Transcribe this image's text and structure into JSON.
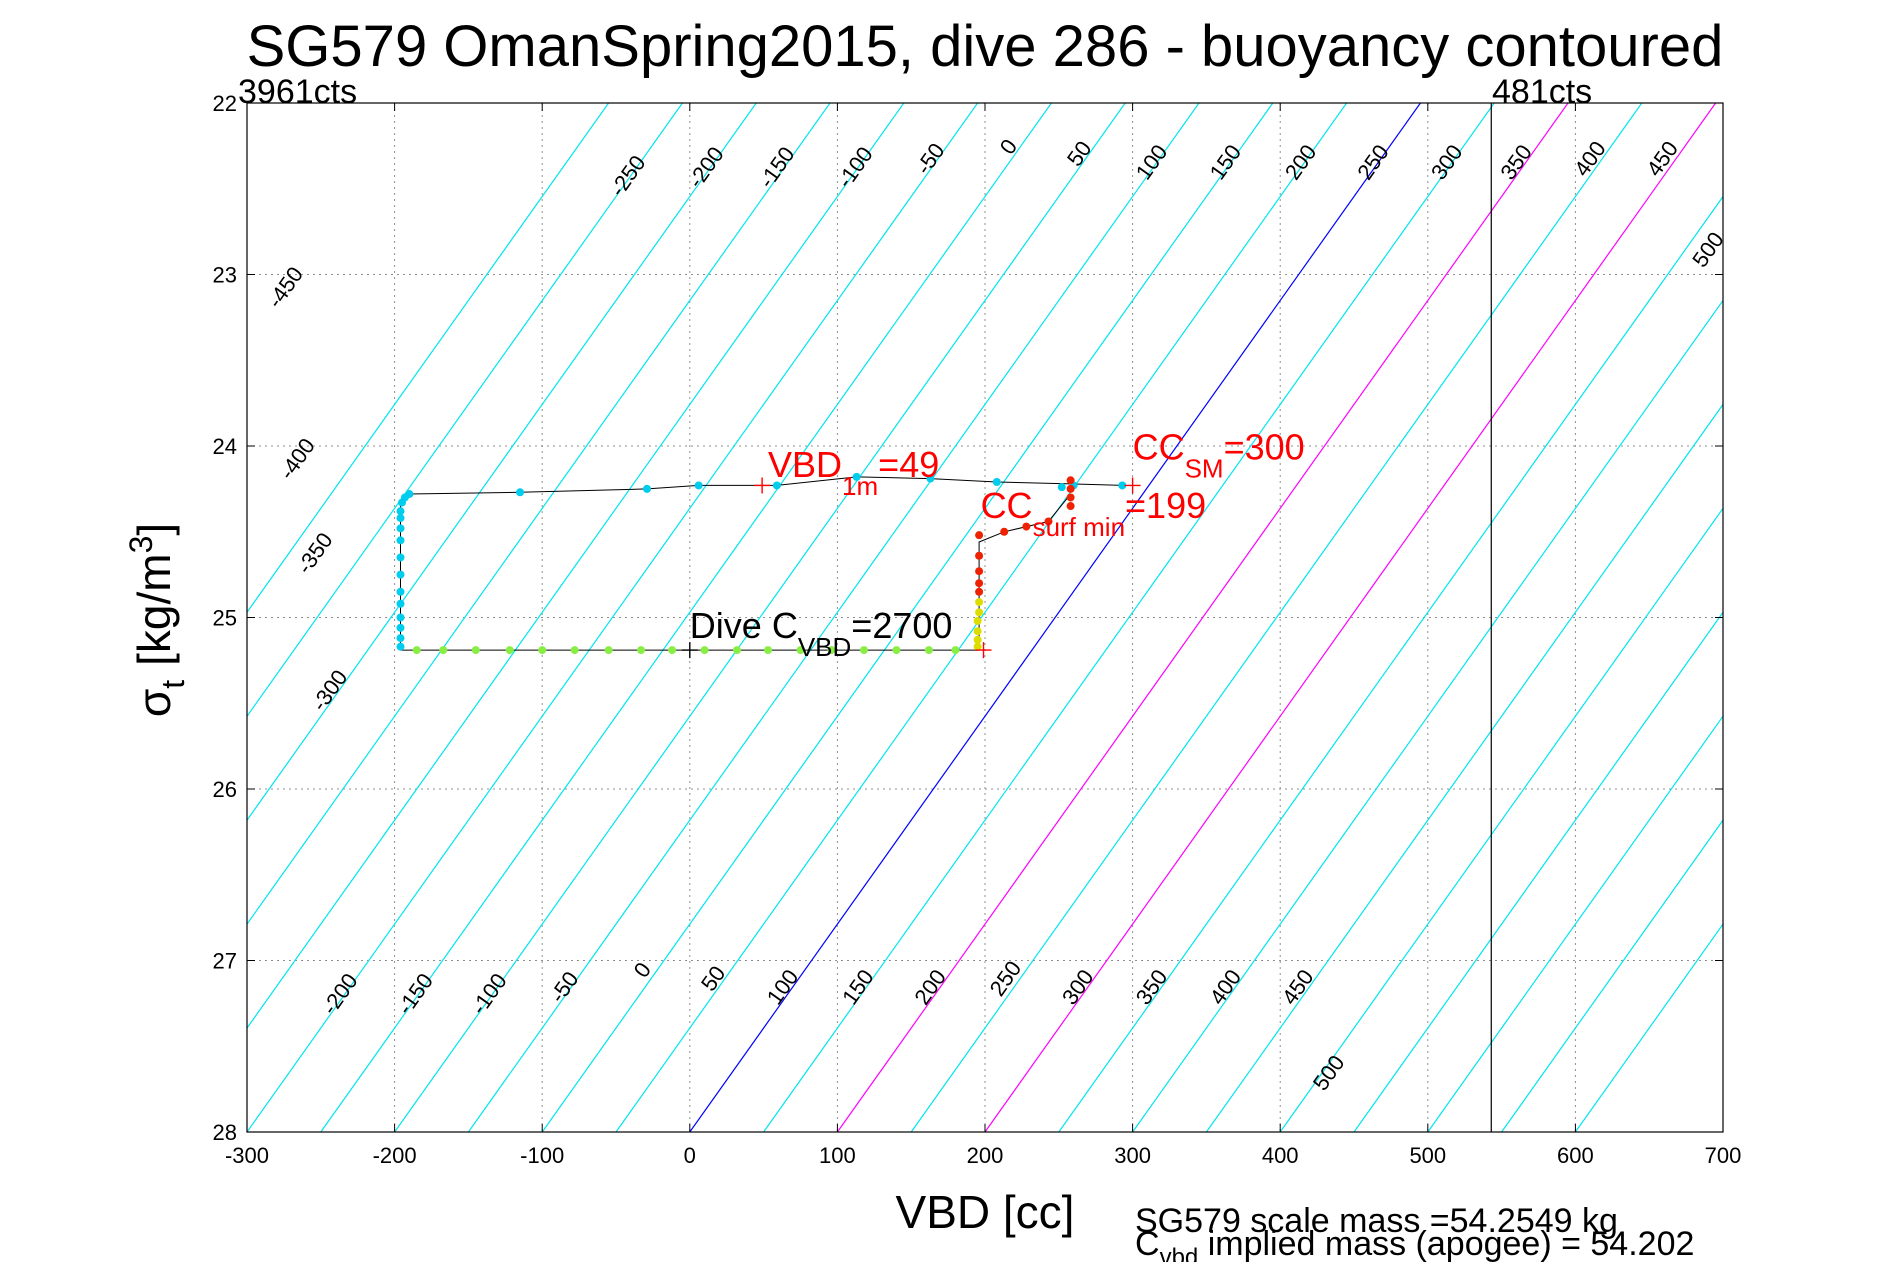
{
  "chart_data": {
    "type": "scatter",
    "title": "SG579 OmanSpring2015, dive 286 - buoyancy contoured",
    "xlabel": "VBD [cc]",
    "ylabel_main": "σ",
    "ylabel_sub": "t",
    "ylabel_unit": "[kg/m",
    "ylabel_unit_sup": "3",
    "ylabel_unit_close": "]",
    "xlim": [
      -300,
      700
    ],
    "ylim": [
      22,
      28
    ],
    "y_reversed": true,
    "grid": true,
    "x_ticks": [
      -300,
      -200,
      -100,
      0,
      100,
      200,
      300,
      400,
      500,
      600,
      700
    ],
    "x_tick_labels": [
      "-300",
      "-200",
      "-100",
      "0",
      "100",
      "200",
      "300",
      "400",
      "500",
      "600",
      "700"
    ],
    "y_ticks": [
      22,
      23,
      24,
      25,
      26,
      27,
      28
    ],
    "y_tick_labels": [
      "22",
      "23",
      "24",
      "25",
      "26",
      "27",
      "28"
    ],
    "corner_labels": {
      "left": "3961cts",
      "right": "481cts"
    },
    "vbd_limit_line_x": 543,
    "contours": {
      "offsets": [
        -450,
        -400,
        -350,
        -300,
        -250,
        -200,
        -150,
        -100,
        -50,
        0,
        50,
        100,
        150,
        200,
        250,
        300,
        350,
        400,
        450,
        500
      ],
      "values": [
        -550,
        -500,
        -450,
        -400,
        -350,
        -300,
        -250,
        -200,
        -150,
        -100,
        -50,
        0,
        50,
        100,
        150,
        200,
        250,
        300,
        350,
        400,
        450,
        500,
        550,
        600
      ],
      "top_labels": [
        {
          "text": "-450",
          "x": -270,
          "y": 23.1
        },
        {
          "text": "-400",
          "x": -262,
          "y": 24.1
        },
        {
          "text": "-350",
          "x": -250,
          "y": 24.65
        },
        {
          "text": "-300",
          "x": -240,
          "y": 25.45
        },
        {
          "text": "-250",
          "x": -38,
          "y": 22.45
        },
        {
          "text": "-200",
          "x": 15,
          "y": 22.4
        },
        {
          "text": "-150",
          "x": 63,
          "y": 22.4
        },
        {
          "text": "-100",
          "x": 116,
          "y": 22.4
        },
        {
          "text": "-50",
          "x": 167,
          "y": 22.35
        },
        {
          "text": "0",
          "x": 220,
          "y": 22.28
        },
        {
          "text": "50",
          "x": 268,
          "y": 22.32
        },
        {
          "text": "100",
          "x": 317,
          "y": 22.37
        },
        {
          "text": "150",
          "x": 367,
          "y": 22.37
        },
        {
          "text": "200",
          "x": 418,
          "y": 22.37
        },
        {
          "text": "250",
          "x": 467,
          "y": 22.37
        },
        {
          "text": "300",
          "x": 517,
          "y": 22.37
        },
        {
          "text": "350",
          "x": 564,
          "y": 22.37
        },
        {
          "text": "400",
          "x": 614,
          "y": 22.35
        },
        {
          "text": "450",
          "x": 663,
          "y": 22.35
        },
        {
          "text": "500",
          "x": 694,
          "y": 22.88
        }
      ],
      "bottom_labels": [
        {
          "text": "-200",
          "x": -233,
          "y": 27.22
        },
        {
          "text": "-150",
          "x": -182,
          "y": 27.22
        },
        {
          "text": "-100",
          "x": -132,
          "y": 27.22
        },
        {
          "text": "-50",
          "x": -81,
          "y": 27.18
        },
        {
          "text": "0",
          "x": -28,
          "y": 27.08
        },
        {
          "text": "50",
          "x": 20,
          "y": 27.13
        },
        {
          "text": "100",
          "x": 67,
          "y": 27.18
        },
        {
          "text": "150",
          "x": 118,
          "y": 27.18
        },
        {
          "text": "200",
          "x": 167,
          "y": 27.18
        },
        {
          "text": "250",
          "x": 218,
          "y": 27.13
        },
        {
          "text": "300",
          "x": 267,
          "y": 27.18
        },
        {
          "text": "350",
          "x": 317,
          "y": 27.18
        },
        {
          "text": "400",
          "x": 367,
          "y": 27.18
        },
        {
          "text": "450",
          "x": 416,
          "y": 27.18
        },
        {
          "text": "500",
          "x": 437,
          "y": 27.68
        }
      ]
    },
    "series": [
      {
        "points": [
          [
            -190,
            24.28
          ],
          [
            -115,
            24.27
          ],
          [
            -29,
            24.25
          ],
          [
            6,
            24.23
          ],
          [
            59,
            24.23
          ],
          [
            113,
            24.18
          ],
          [
            163,
            24.19
          ],
          [
            208,
            24.21
          ],
          [
            252,
            24.24
          ],
          [
            260,
            24.23
          ],
          [
            293,
            24.23
          ],
          [
            -193,
            24.3
          ],
          [
            -195,
            24.33
          ],
          [
            -196,
            24.38
          ],
          [
            -196,
            24.42
          ],
          [
            -196,
            24.48
          ],
          [
            -196,
            24.55
          ],
          [
            -196,
            24.65
          ],
          [
            -196,
            24.75
          ],
          [
            -196,
            24.85
          ],
          [
            -196,
            24.92
          ],
          [
            -196,
            25.0
          ],
          [
            -196,
            25.06
          ],
          [
            -196,
            25.12
          ],
          [
            -196,
            25.17
          ]
        ]
      },
      {
        "points": [
          [
            -185,
            25.19
          ],
          [
            -167,
            25.19
          ],
          [
            -145,
            25.19
          ],
          [
            -122,
            25.19
          ],
          [
            -100,
            25.19
          ],
          [
            -78,
            25.19
          ],
          [
            -55,
            25.19
          ],
          [
            -33,
            25.19
          ],
          [
            -12,
            25.19
          ],
          [
            10,
            25.19
          ],
          [
            32,
            25.19
          ],
          [
            53,
            25.19
          ],
          [
            75,
            25.19
          ],
          [
            96,
            25.19
          ],
          [
            118,
            25.19
          ],
          [
            140,
            25.19
          ],
          [
            162,
            25.19
          ],
          [
            180,
            25.19
          ]
        ]
      },
      {
        "points": [
          [
            195,
            25.17
          ],
          [
            195,
            25.13
          ],
          [
            195,
            25.08
          ],
          [
            195,
            25.02
          ],
          [
            196,
            24.97
          ],
          [
            196,
            24.91
          ]
        ]
      },
      {
        "points": [
          [
            196,
            24.52
          ],
          [
            196,
            24.64
          ],
          [
            196,
            24.73
          ],
          [
            196,
            24.8
          ],
          [
            196,
            24.85
          ],
          [
            213,
            24.5
          ],
          [
            228,
            24.47
          ],
          [
            243,
            24.44
          ],
          [
            258,
            24.3
          ],
          [
            258,
            24.25
          ],
          [
            258,
            24.2
          ],
          [
            258,
            24.35
          ]
        ]
      }
    ],
    "track": [
      [
        293,
        24.23
      ],
      [
        255,
        24.22
      ],
      [
        208,
        24.21
      ],
      [
        163,
        24.19
      ],
      [
        113,
        24.18
      ],
      [
        59,
        24.23
      ],
      [
        6,
        24.23
      ],
      [
        -29,
        24.25
      ],
      [
        -115,
        24.27
      ],
      [
        -190,
        24.28
      ],
      [
        -196,
        24.32
      ],
      [
        -196,
        25.19
      ],
      [
        196,
        25.19
      ],
      [
        196,
        24.56
      ],
      [
        213,
        24.5
      ],
      [
        243,
        24.44
      ],
      [
        258,
        24.28
      ]
    ],
    "annotations": [
      {
        "main": "VBD",
        "sub": "1m",
        "suffix": "=49",
        "x": 53,
        "y": 24.18,
        "color": "#ff0000",
        "marker_x": 49,
        "marker_y": 24.23
      },
      {
        "main": "CC",
        "sub": "SM",
        "suffix": "=300",
        "x": 300,
        "y": 24.08,
        "color": "#ff0000",
        "marker_x": 300,
        "marker_y": 24.23
      },
      {
        "main": "CC",
        "sub": "surf min",
        "suffix": "=199",
        "x": 197,
        "y": 24.42,
        "color": "#ff0000",
        "marker_x": 199,
        "marker_y": 25.19
      },
      {
        "main": "Dive C",
        "sub": "VBD",
        "suffix": "=2700",
        "x": 0,
        "y": 25.12,
        "color": "#000000",
        "marker_x": 0,
        "marker_y": 25.19
      }
    ],
    "footer": {
      "line1": "SG579 scale mass =54.2549 kg",
      "line2_main": "C",
      "line2_sub": "vbd",
      "line2_rest": " implied mass (apogee) = 54.202"
    },
    "colors": {
      "contour": "#00e5ee",
      "zero_contour": "#0000ff",
      "magenta_contour": "#ff00ff",
      "grid": "#909090",
      "track": "#000000",
      "cyan_points": "#00ccee",
      "green_points": "#88ee44",
      "yellow_points": "#dddd00",
      "red_points": "#ee2200",
      "annotation": "#ff0000"
    }
  }
}
